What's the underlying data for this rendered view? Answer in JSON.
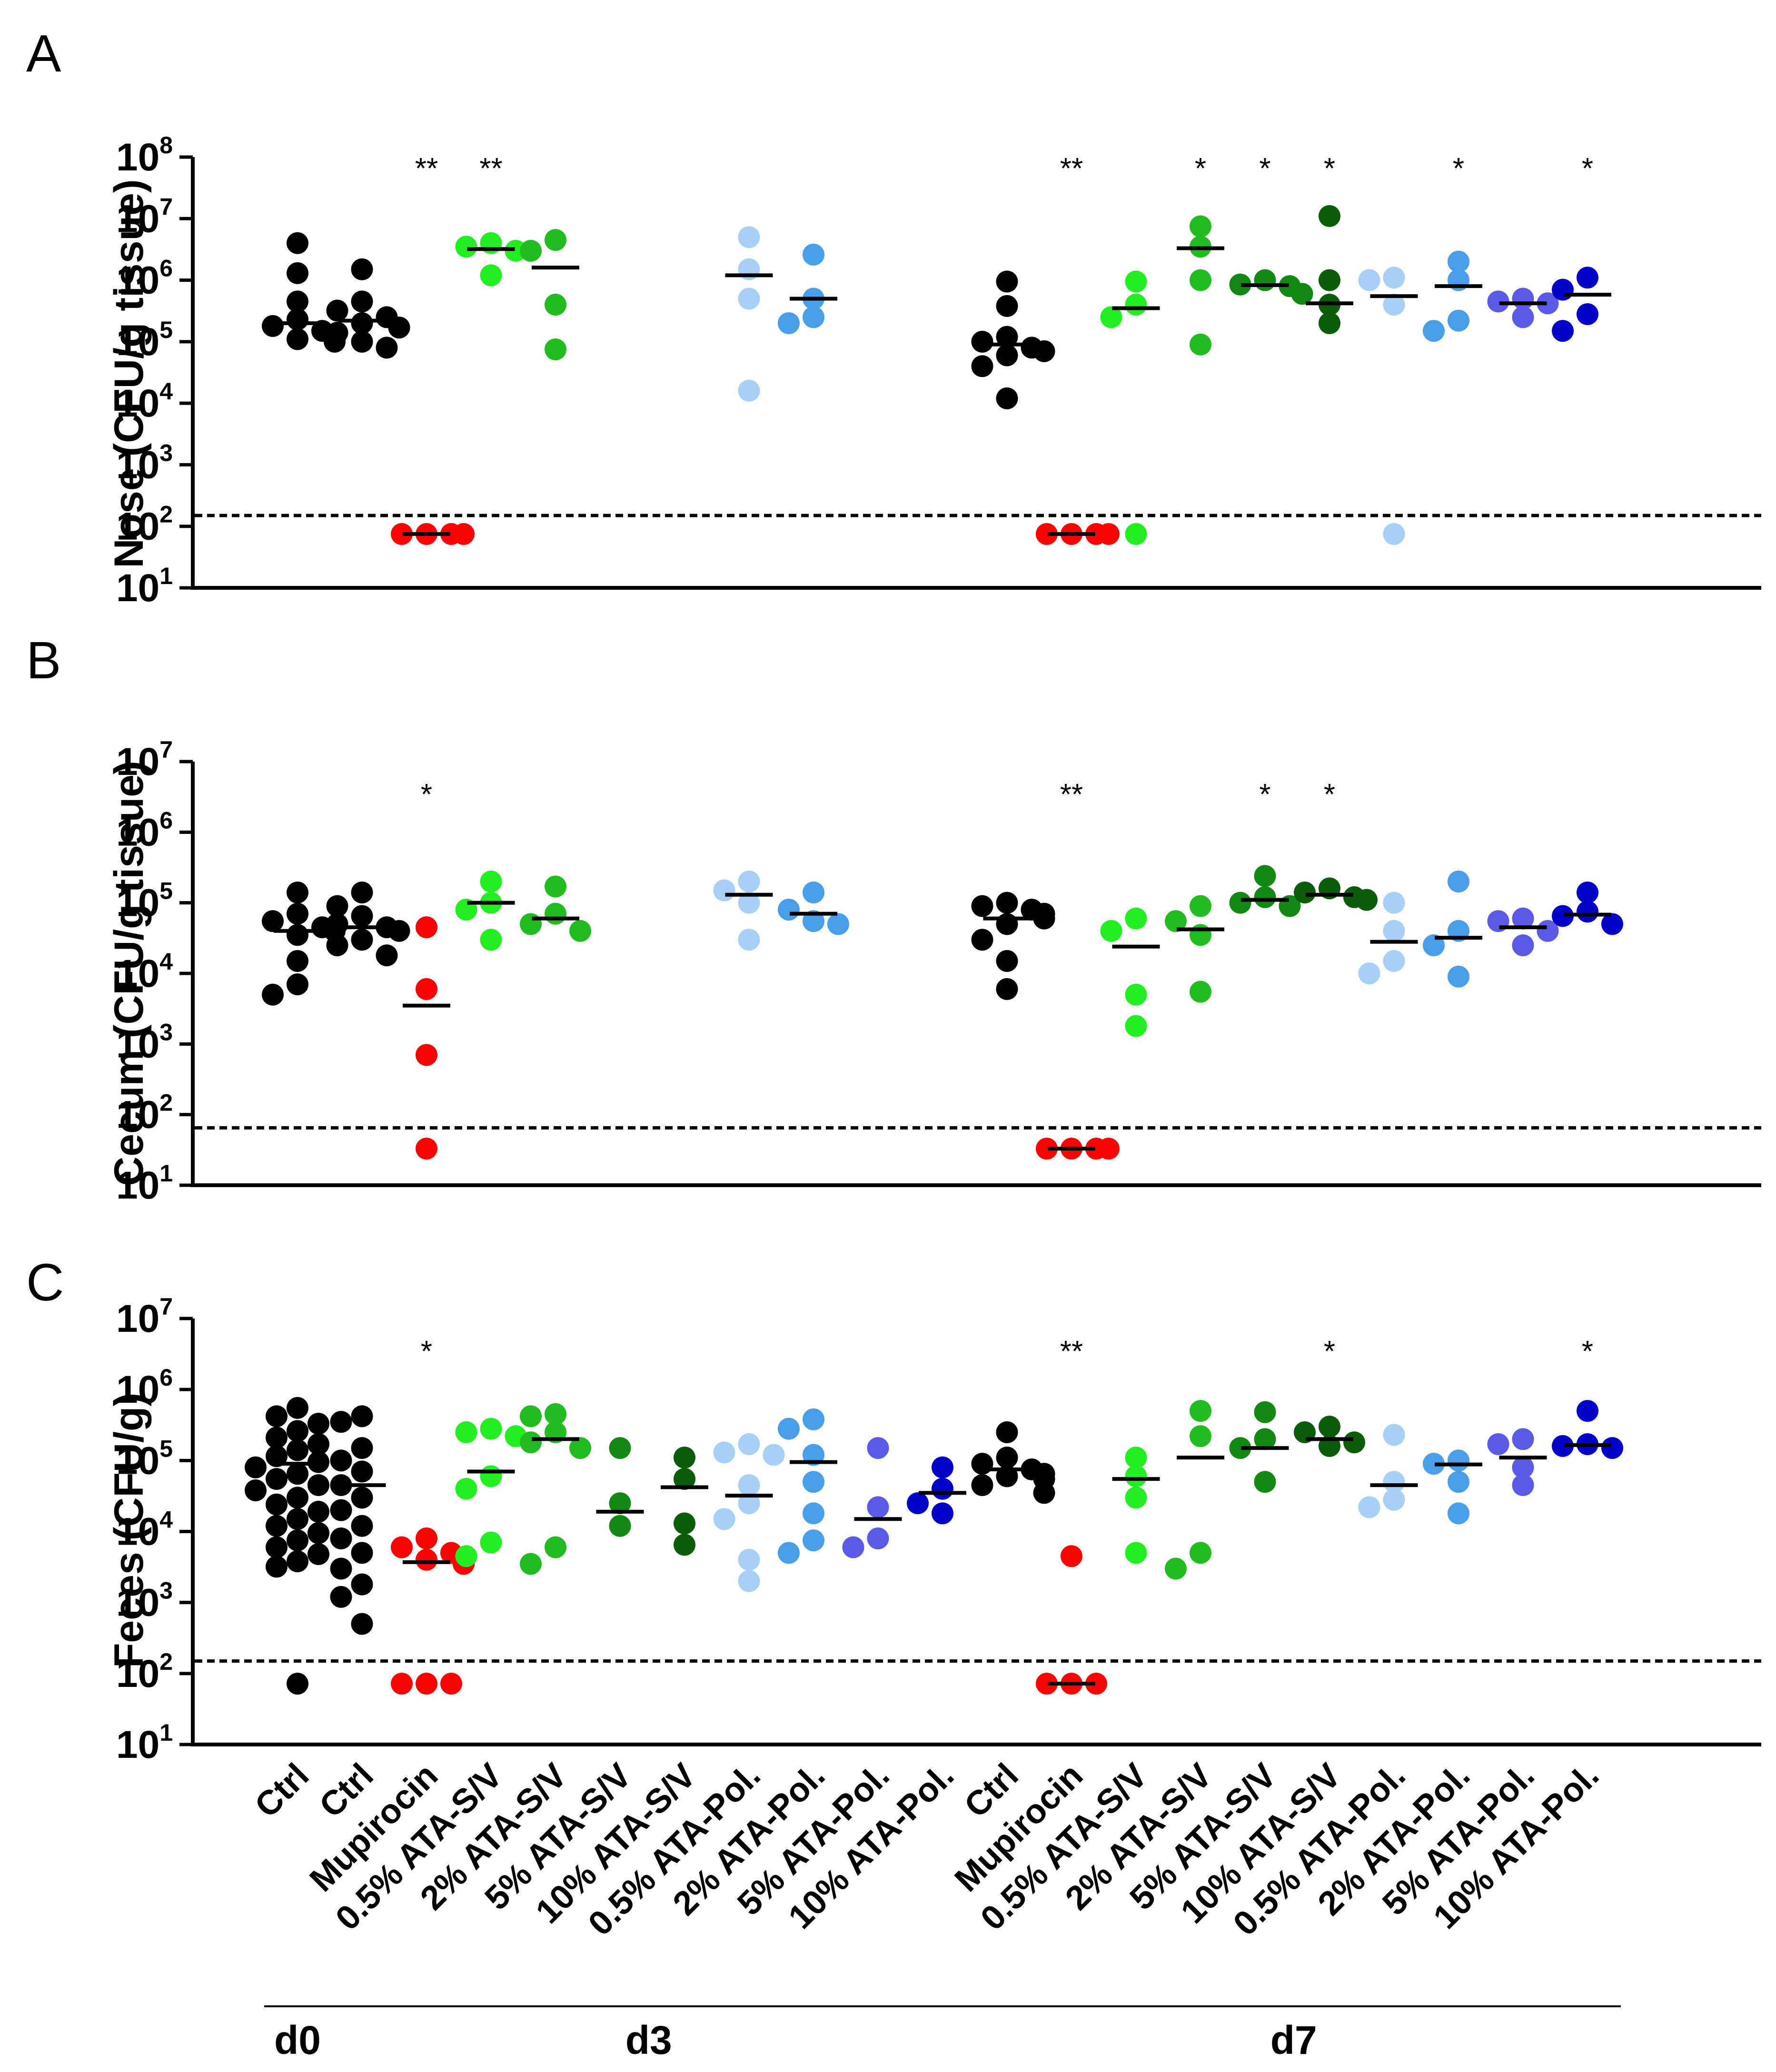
{
  "panel_labels": [
    "A",
    "B",
    "C"
  ],
  "x_categories": [
    "Ctrl",
    "Ctrl",
    "Mupirocin",
    "0.5% ATA-S/V",
    "2% ATA-S/V",
    "5% ATA-S/V",
    "10% ATA-S/V",
    "0.5% ATA-Pol.",
    "2% ATA-Pol.",
    "5% ATA-Pol.",
    "10% ATA-Pol.",
    "Ctrl",
    "Mupirocin",
    "0.5% ATA-S/V",
    "2% ATA-S/V",
    "5% ATA-S/V",
    "10% ATA-S/V",
    "0.5% ATA-Pol.",
    "2% ATA-Pol.",
    "5% ATA-Pol.",
    "10% ATA-Pol."
  ],
  "day_groups": [
    {
      "label": "d0",
      "from": 0,
      "to": 0
    },
    {
      "label": "d3",
      "from": 1,
      "to": 10
    },
    {
      "label": "d7",
      "from": 11,
      "to": 20
    }
  ],
  "group_colors": [
    "#000000",
    "#000000",
    "#ff0000",
    "#22ee22",
    "#22bb22",
    "#138813",
    "#0c5c0c",
    "#a8d0f5",
    "#4a9de8",
    "#5a5ae6",
    "#0000c8",
    "#000000",
    "#ff0000",
    "#22ee22",
    "#22bb22",
    "#138813",
    "#0c5c0c",
    "#a8d0f5",
    "#4a9de8",
    "#5a5ae6",
    "#0000c8"
  ],
  "chart_data": [
    {
      "type": "scatter",
      "panel": "A",
      "ylabel": "Nose (CFU/g tissue)",
      "yscale": "log",
      "ylim": [
        10,
        100000000
      ],
      "yticks": [
        {
          "base": "10",
          "exp": "1"
        },
        {
          "base": "10",
          "exp": "2"
        },
        {
          "base": "10",
          "exp": "3"
        },
        {
          "base": "10",
          "exp": "4"
        },
        {
          "base": "10",
          "exp": "5"
        },
        {
          "base": "10",
          "exp": "6"
        },
        {
          "base": "10",
          "exp": "7"
        },
        {
          "base": "10",
          "exp": "8"
        }
      ],
      "detection_limit": 150,
      "groups": [
        {
          "points": [
            4000000,
            1300000,
            450000,
            230000,
            180000,
            150000,
            120000,
            110000,
            100000
          ],
          "median": 200000,
          "sig": ""
        },
        {
          "points": [
            1500000,
            450000,
            320000,
            250000,
            200000,
            170000,
            140000,
            100000,
            80000
          ],
          "median": 220000,
          "sig": ""
        },
        {
          "points": [
            75,
            75,
            75,
            75
          ],
          "median": 75,
          "sig": "**"
        },
        {
          "points": [
            4000000,
            3500000,
            3000000,
            1200000
          ],
          "median": 3200000,
          "sig": "**"
        },
        {
          "points": [
            4500000,
            3000000,
            400000,
            75000
          ],
          "median": 1600000,
          "sig": ""
        },
        null,
        null,
        {
          "points": [
            5000000,
            1500000,
            500000,
            16000
          ],
          "median": 1200000,
          "sig": ""
        },
        {
          "points": [
            2600000,
            500000,
            250000,
            200000
          ],
          "median": 500000,
          "sig": ""
        },
        null,
        null,
        {
          "points": [
            950000,
            380000,
            120000,
            100000,
            80000,
            70000,
            60000,
            40000,
            12000
          ],
          "median": 90000,
          "sig": ""
        },
        {
          "points": [
            75,
            75,
            75,
            75
          ],
          "median": 75,
          "sig": "**"
        },
        {
          "points": [
            950000,
            400000,
            250000,
            75
          ],
          "median": 350000,
          "sig": ""
        },
        {
          "points": [
            7500000,
            3500000,
            1000000,
            90000
          ],
          "median": 3300000,
          "sig": "*"
        },
        {
          "points": [
            1000000,
            850000,
            800000,
            600000
          ],
          "median": 830000,
          "sig": "*"
        },
        {
          "points": [
            11000000,
            1000000,
            400000,
            200000
          ],
          "median": 420000,
          "sig": "*"
        },
        {
          "points": [
            1100000,
            1000000,
            400000,
            75
          ],
          "median": 550000,
          "sig": ""
        },
        {
          "points": [
            2000000,
            1000000,
            220000,
            150000
          ],
          "median": 800000,
          "sig": "*"
        },
        {
          "points": [
            500000,
            450000,
            420000,
            250000
          ],
          "median": 420000,
          "sig": ""
        },
        {
          "points": [
            1100000,
            700000,
            280000,
            150000
          ],
          "median": 580000,
          "sig": "*"
        }
      ]
    },
    {
      "type": "scatter",
      "panel": "B",
      "ylabel": "Cecum (CFU/g tissue)",
      "yscale": "log",
      "ylim": [
        10,
        10000000
      ],
      "yticks": [
        {
          "base": "10",
          "exp": "1"
        },
        {
          "base": "10",
          "exp": "2"
        },
        {
          "base": "10",
          "exp": "3"
        },
        {
          "base": "10",
          "exp": "4"
        },
        {
          "base": "10",
          "exp": "5"
        },
        {
          "base": "10",
          "exp": "6"
        },
        {
          "base": "10",
          "exp": "7"
        }
      ],
      "detection_limit": 65,
      "groups": [
        {
          "points": [
            140000,
            70000,
            55000,
            45000,
            40000,
            35000,
            15000,
            7000,
            5000
          ],
          "median": 40000,
          "sig": ""
        },
        {
          "points": [
            140000,
            90000,
            65000,
            50000,
            45000,
            40000,
            30000,
            25000,
            18000
          ],
          "median": 45000,
          "sig": ""
        },
        {
          "points": [
            45000,
            6000,
            700,
            33
          ],
          "median": 3500,
          "sig": "*"
        },
        {
          "points": [
            200000,
            100000,
            80000,
            30000
          ],
          "median": 100000,
          "sig": ""
        },
        {
          "points": [
            170000,
            70000,
            50000,
            40000
          ],
          "median": 60000,
          "sig": ""
        },
        null,
        null,
        {
          "points": [
            200000,
            150000,
            100000,
            30000
          ],
          "median": 130000,
          "sig": ""
        },
        {
          "points": [
            140000,
            80000,
            55000,
            50000
          ],
          "median": 70000,
          "sig": ""
        },
        null,
        null,
        {
          "points": [
            100000,
            90000,
            80000,
            70000,
            60000,
            50000,
            30000,
            15000,
            6000
          ],
          "median": 60000,
          "sig": ""
        },
        {
          "points": [
            33,
            33,
            33,
            33
          ],
          "median": 33,
          "sig": "**"
        },
        {
          "points": [
            60000,
            40000,
            5000,
            1800
          ],
          "median": 24000,
          "sig": ""
        },
        {
          "points": [
            90000,
            55000,
            35000,
            5500
          ],
          "median": 42000,
          "sig": ""
        },
        {
          "points": [
            240000,
            120000,
            100000,
            90000
          ],
          "median": 110000,
          "sig": "*"
        },
        {
          "points": [
            160000,
            140000,
            120000,
            110000
          ],
          "median": 130000,
          "sig": "*"
        },
        {
          "points": [
            100000,
            40000,
            15000,
            10000
          ],
          "median": 28000,
          "sig": ""
        },
        {
          "points": [
            200000,
            40000,
            25000,
            9000
          ],
          "median": 32000,
          "sig": ""
        },
        {
          "points": [
            60000,
            55000,
            40000,
            25000
          ],
          "median": 45000,
          "sig": ""
        },
        {
          "points": [
            140000,
            75000,
            65000,
            50000
          ],
          "median": 68000,
          "sig": ""
        }
      ]
    },
    {
      "type": "scatter",
      "panel": "C",
      "ylabel": "Feces (CFU/g)",
      "yscale": "log",
      "ylim": [
        10,
        10000000
      ],
      "yticks": [
        {
          "base": "10",
          "exp": "1"
        },
        {
          "base": "10",
          "exp": "2"
        },
        {
          "base": "10",
          "exp": "3"
        },
        {
          "base": "10",
          "exp": "4"
        },
        {
          "base": "10",
          "exp": "5"
        },
        {
          "base": "10",
          "exp": "6"
        },
        {
          "base": "10",
          "exp": "7"
        }
      ],
      "detection_limit": 150,
      "groups": [
        {
          "points": [
            550000,
            420000,
            330000,
            260000,
            210000,
            170000,
            140000,
            115000,
            95000,
            80000,
            65000,
            55000,
            45000,
            38000,
            30000,
            24000,
            19000,
            15000,
            12000,
            9500,
            7500,
            6000,
            4800,
            3800,
            3200,
            72
          ],
          "median": 90000,
          "sig": ""
        },
        {
          "points": [
            420000,
            350000,
            150000,
            100000,
            70000,
            45000,
            30000,
            20000,
            12000,
            8000,
            5000,
            3000,
            1800,
            1200,
            500
          ],
          "median": 45000,
          "sig": ""
        },
        {
          "points": [
            8000,
            6000,
            5000,
            4000,
            3500,
            72,
            72,
            72
          ],
          "median": 3700,
          "sig": "*"
        },
        {
          "points": [
            280000,
            250000,
            220000,
            60000,
            40000,
            7000,
            4500
          ],
          "median": 70000,
          "sig": ""
        },
        {
          "points": [
            450000,
            420000,
            250000,
            180000,
            150000,
            6000,
            3500
          ],
          "median": 200000,
          "sig": ""
        },
        {
          "points": [
            150000,
            25000,
            12000
          ],
          "median": 19000,
          "sig": ""
        },
        {
          "points": [
            110000,
            55000,
            13000,
            6500
          ],
          "median": 42000,
          "sig": ""
        },
        {
          "points": [
            170000,
            130000,
            120000,
            45000,
            25000,
            15000,
            4000,
            2000
          ],
          "median": 32000,
          "sig": ""
        },
        {
          "points": [
            380000,
            280000,
            120000,
            50000,
            18000,
            7500,
            5000
          ],
          "median": 95000,
          "sig": ""
        },
        {
          "points": [
            150000,
            22000,
            8000,
            6000
          ],
          "median": 15000,
          "sig": ""
        },
        {
          "points": [
            80000,
            40000,
            25000,
            18000
          ],
          "median": 35000,
          "sig": ""
        },
        {
          "points": [
            250000,
            110000,
            90000,
            75000,
            65000,
            60000,
            55000,
            45000,
            35000
          ],
          "median": 75000,
          "sig": ""
        },
        {
          "points": [
            4500,
            72,
            72,
            72
          ],
          "median": 72,
          "sig": "**"
        },
        {
          "points": [
            110000,
            60000,
            30000,
            5000
          ],
          "median": 55000,
          "sig": ""
        },
        {
          "points": [
            500000,
            220000,
            5000,
            3000
          ],
          "median": 110000,
          "sig": ""
        },
        {
          "points": [
            480000,
            200000,
            150000,
            50000
          ],
          "median": 150000,
          "sig": ""
        },
        {
          "points": [
            300000,
            250000,
            180000,
            160000
          ],
          "median": 200000,
          "sig": "*"
        },
        {
          "points": [
            230000,
            50000,
            28000,
            22000
          ],
          "median": 45000,
          "sig": ""
        },
        {
          "points": [
            100000,
            90000,
            50000,
            18000
          ],
          "median": 88000,
          "sig": ""
        },
        {
          "points": [
            200000,
            170000,
            80000,
            45000
          ],
          "median": 110000,
          "sig": ""
        },
        {
          "points": [
            500000,
            170000,
            160000,
            150000
          ],
          "median": 165000,
          "sig": "*"
        }
      ]
    }
  ]
}
